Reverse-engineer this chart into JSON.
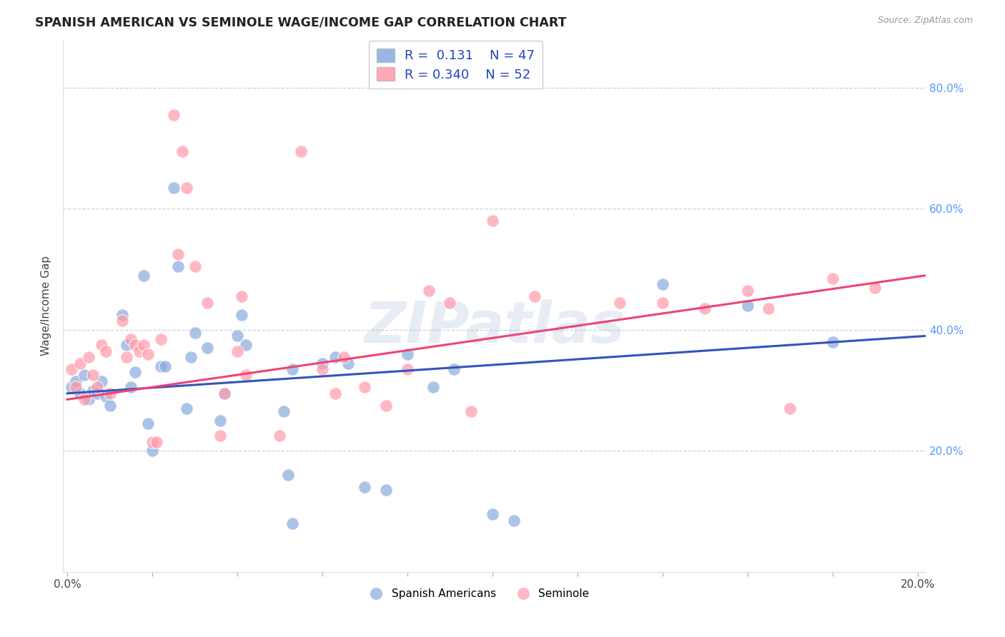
{
  "title": "SPANISH AMERICAN VS SEMINOLE WAGE/INCOME GAP CORRELATION CHART",
  "source": "Source: ZipAtlas.com",
  "ylabel": "Wage/Income Gap",
  "ytick_values": [
    0.2,
    0.4,
    0.6,
    0.8
  ],
  "xlim": [
    -0.001,
    0.202
  ],
  "ylim": [
    0.0,
    0.88
  ],
  "color_blue": "#88AADD",
  "color_pink": "#FF99AA",
  "color_blue_line": "#3355BB",
  "color_pink_line": "#EE4477",
  "color_right_ticks": "#5599FF",
  "watermark": "ZIPatlas",
  "blue_points": [
    [
      0.001,
      0.305
    ],
    [
      0.002,
      0.315
    ],
    [
      0.003,
      0.295
    ],
    [
      0.004,
      0.325
    ],
    [
      0.005,
      0.285
    ],
    [
      0.006,
      0.3
    ],
    [
      0.007,
      0.295
    ],
    [
      0.008,
      0.315
    ],
    [
      0.009,
      0.29
    ],
    [
      0.01,
      0.275
    ],
    [
      0.013,
      0.425
    ],
    [
      0.014,
      0.375
    ],
    [
      0.015,
      0.305
    ],
    [
      0.016,
      0.33
    ],
    [
      0.018,
      0.49
    ],
    [
      0.019,
      0.245
    ],
    [
      0.02,
      0.2
    ],
    [
      0.022,
      0.34
    ],
    [
      0.023,
      0.34
    ],
    [
      0.025,
      0.635
    ],
    [
      0.026,
      0.505
    ],
    [
      0.028,
      0.27
    ],
    [
      0.029,
      0.355
    ],
    [
      0.03,
      0.395
    ],
    [
      0.033,
      0.37
    ],
    [
      0.036,
      0.25
    ],
    [
      0.037,
      0.295
    ],
    [
      0.04,
      0.39
    ],
    [
      0.041,
      0.425
    ],
    [
      0.042,
      0.375
    ],
    [
      0.051,
      0.265
    ],
    [
      0.053,
      0.335
    ],
    [
      0.06,
      0.345
    ],
    [
      0.063,
      0.355
    ],
    [
      0.066,
      0.345
    ],
    [
      0.07,
      0.14
    ],
    [
      0.075,
      0.135
    ],
    [
      0.08,
      0.36
    ],
    [
      0.086,
      0.305
    ],
    [
      0.091,
      0.335
    ],
    [
      0.1,
      0.095
    ],
    [
      0.105,
      0.085
    ],
    [
      0.14,
      0.475
    ],
    [
      0.16,
      0.44
    ],
    [
      0.18,
      0.38
    ],
    [
      0.052,
      0.16
    ],
    [
      0.053,
      0.08
    ]
  ],
  "pink_points": [
    [
      0.001,
      0.335
    ],
    [
      0.002,
      0.305
    ],
    [
      0.003,
      0.345
    ],
    [
      0.004,
      0.285
    ],
    [
      0.005,
      0.355
    ],
    [
      0.006,
      0.325
    ],
    [
      0.007,
      0.305
    ],
    [
      0.008,
      0.375
    ],
    [
      0.009,
      0.365
    ],
    [
      0.01,
      0.295
    ],
    [
      0.013,
      0.415
    ],
    [
      0.014,
      0.355
    ],
    [
      0.015,
      0.385
    ],
    [
      0.016,
      0.375
    ],
    [
      0.017,
      0.365
    ],
    [
      0.018,
      0.375
    ],
    [
      0.019,
      0.36
    ],
    [
      0.02,
      0.215
    ],
    [
      0.021,
      0.215
    ],
    [
      0.022,
      0.385
    ],
    [
      0.025,
      0.755
    ],
    [
      0.026,
      0.525
    ],
    [
      0.027,
      0.695
    ],
    [
      0.028,
      0.635
    ],
    [
      0.03,
      0.505
    ],
    [
      0.033,
      0.445
    ],
    [
      0.036,
      0.225
    ],
    [
      0.037,
      0.295
    ],
    [
      0.04,
      0.365
    ],
    [
      0.041,
      0.455
    ],
    [
      0.042,
      0.325
    ],
    [
      0.05,
      0.225
    ],
    [
      0.055,
      0.695
    ],
    [
      0.06,
      0.335
    ],
    [
      0.063,
      0.295
    ],
    [
      0.065,
      0.355
    ],
    [
      0.07,
      0.305
    ],
    [
      0.075,
      0.275
    ],
    [
      0.08,
      0.335
    ],
    [
      0.085,
      0.465
    ],
    [
      0.09,
      0.445
    ],
    [
      0.095,
      0.265
    ],
    [
      0.1,
      0.58
    ],
    [
      0.11,
      0.455
    ],
    [
      0.13,
      0.445
    ],
    [
      0.14,
      0.445
    ],
    [
      0.15,
      0.435
    ],
    [
      0.16,
      0.465
    ],
    [
      0.165,
      0.435
    ],
    [
      0.17,
      0.27
    ],
    [
      0.18,
      0.485
    ],
    [
      0.19,
      0.47
    ]
  ],
  "blue_line_x": [
    0.0,
    0.202
  ],
  "blue_line_y": [
    0.295,
    0.39
  ],
  "pink_line_x": [
    0.0,
    0.202
  ],
  "pink_line_y": [
    0.285,
    0.49
  ]
}
